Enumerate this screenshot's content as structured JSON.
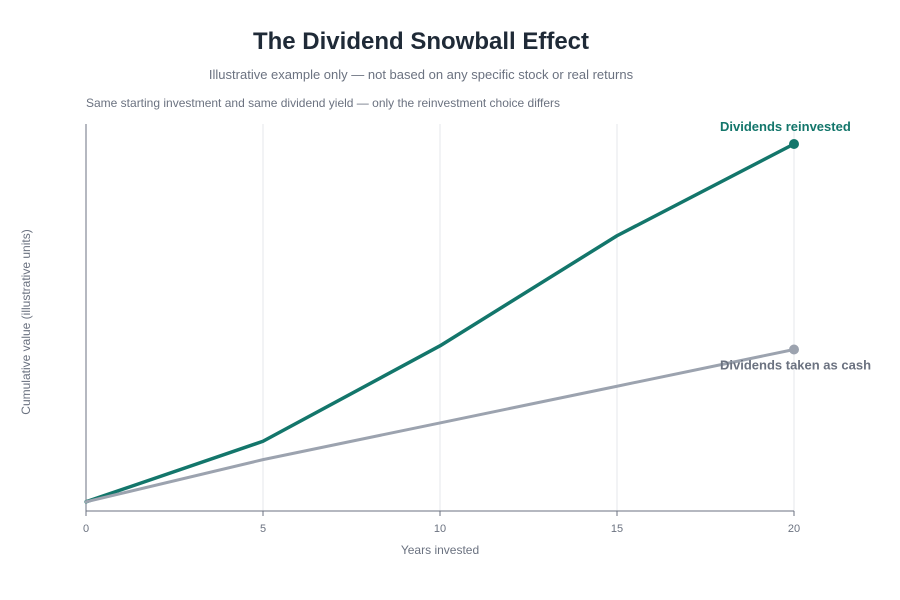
{
  "chart_data": {
    "type": "line",
    "title": "The Dividend Snowball Effect",
    "subtitle": "Illustrative example only — not based on any specific stock or real returns",
    "annotation": "Same starting investment and same dividend yield — only the reinvestment choice differs",
    "xlabel": "Years invested",
    "ylabel": "Cumulative value (illustrative units)",
    "x": [
      0,
      5,
      10,
      15,
      20
    ],
    "xlim": [
      0,
      20
    ],
    "ylim": [
      0,
      100
    ],
    "grid": "vertical",
    "series": [
      {
        "name": "Dividends reinvested",
        "values": [
          2.5,
          19,
          45,
          75,
          100
        ],
        "color": "#13766b"
      },
      {
        "name": "Dividends taken as cash",
        "values": [
          2.5,
          14,
          24,
          34,
          44
        ],
        "color": "#9ca3af"
      }
    ],
    "colors": {
      "axis": "#6b7280",
      "grid": "#e5e7eb",
      "series_label_gray": "#6b7280"
    }
  }
}
